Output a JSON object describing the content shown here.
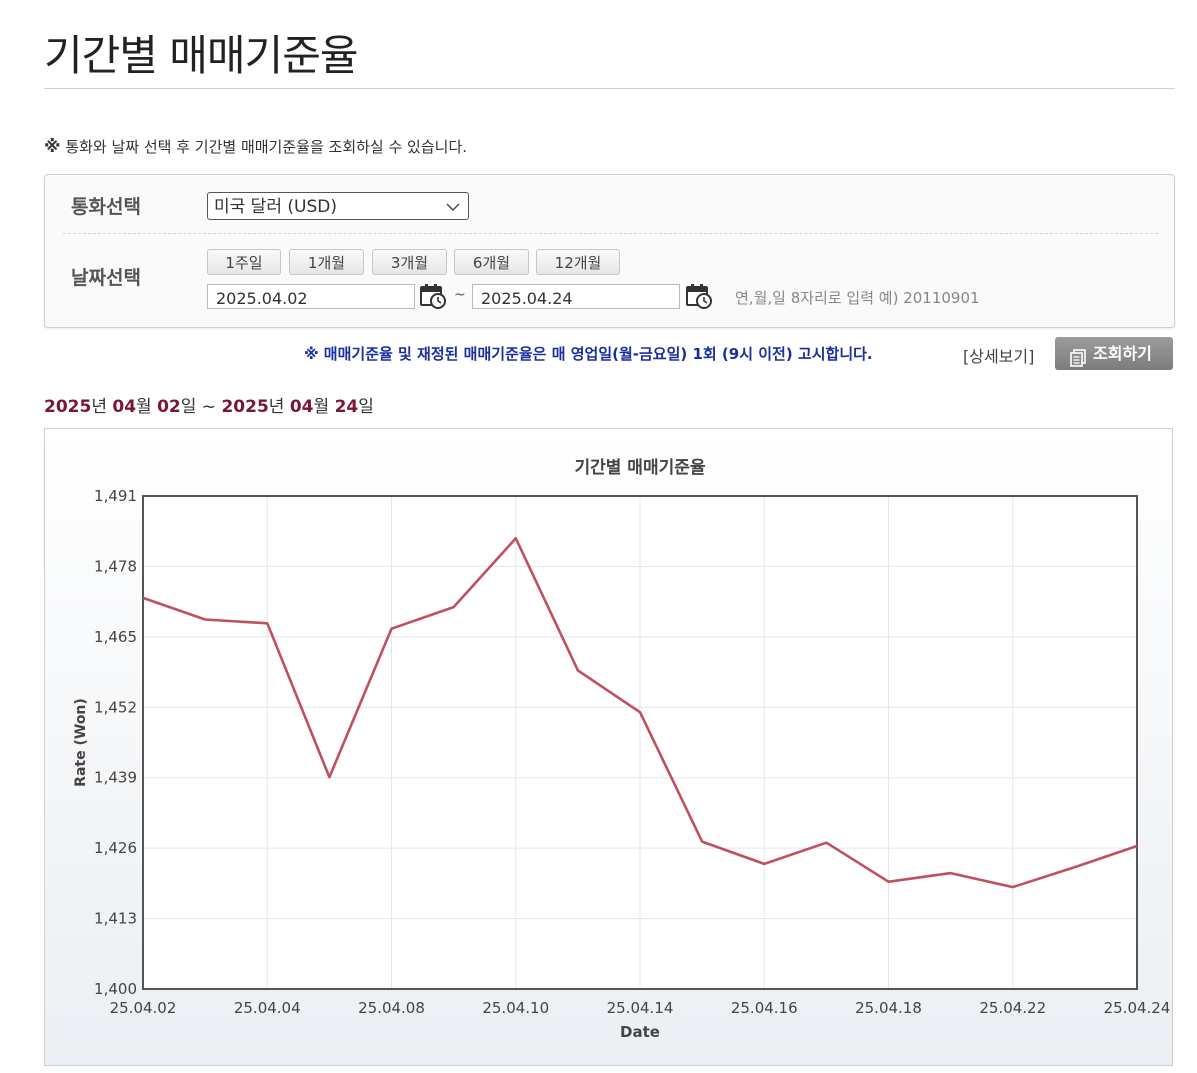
{
  "page": {
    "title": "기간별 매매기준율",
    "notice_mark": "※",
    "notice": "통화와 날짜 선택 후 기간별 매매기준율을 조회하실 수 있습니다."
  },
  "form": {
    "currency_label": "통화선택",
    "currency_value": "미국 달러 (USD)",
    "date_label": "날짜선택",
    "period_buttons": [
      "1주일",
      "1개월",
      "3개월",
      "6개월",
      "12개월"
    ],
    "start_date": "2025.04.02",
    "end_date": "2025.04.24",
    "tilde": "~",
    "date_hint": "연,월,일 8자리로 입력 예) 20110901"
  },
  "info": {
    "text": "※ 매매기준율 및 재정된 매매기준율은 매 영업일(월-금요일) 1회 (9시 이전) 고시합니다.",
    "detail_link": "[상세보기]",
    "search_button": "조회하기"
  },
  "range": {
    "y1": "2025",
    "l1": "년 ",
    "m1": "04",
    "l2": "월 ",
    "d1": "02",
    "l3": "일 ~ ",
    "y2": "2025",
    "l4": "년 ",
    "m2": "04",
    "l5": "월 ",
    "d2": "24",
    "l6": "일"
  },
  "chart_data": {
    "type": "line",
    "title": "기간별 매매기준율",
    "xlabel": "Date",
    "ylabel": "Rate (Won)",
    "ylim": [
      1400,
      1491
    ],
    "yticks": [
      "1,400",
      "1,413",
      "1,426",
      "1,439",
      "1,452",
      "1,465",
      "1,478",
      "1,491"
    ],
    "x": [
      "25.04.02",
      "25.04.03",
      "25.04.04",
      "25.04.07",
      "25.04.08",
      "25.04.09",
      "25.04.10",
      "25.04.11",
      "25.04.14",
      "25.04.15",
      "25.04.16",
      "25.04.17",
      "25.04.18",
      "25.04.21",
      "25.04.22",
      "25.04.23",
      "25.04.24"
    ],
    "xtick_labels": [
      "25.04.02",
      "25.04.04",
      "25.04.08",
      "25.04.10",
      "25.04.14",
      "25.04.16",
      "25.04.18",
      "25.04.22",
      "25.04.24"
    ],
    "series": [
      {
        "color": "#c0505e",
        "values": [
          1472.2,
          1468.2,
          1467.5,
          1439.1,
          1466.5,
          1470.5,
          1483.2,
          1458.8,
          1451.1,
          1427.2,
          1423.1,
          1427.0,
          1419.8,
          1421.4,
          1418.8,
          1422.5,
          1426.4
        ]
      }
    ],
    "grid": true
  }
}
